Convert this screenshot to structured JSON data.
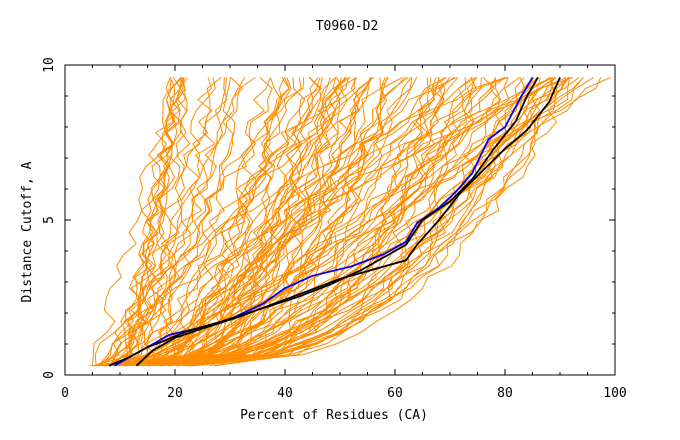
{
  "chart_data": {
    "type": "line",
    "title": "T0960-D2",
    "xlabel": "Percent of Residues (CA)",
    "ylabel": "Distance Cutoff, A",
    "xlim": [
      0,
      100
    ],
    "ylim": [
      0,
      10
    ],
    "x_ticks": [
      "0",
      "20",
      "40",
      "60",
      "80",
      "100"
    ],
    "y_ticks": [
      "0",
      "5",
      "10"
    ],
    "grid": false,
    "legend": "none",
    "colors": {
      "background_models": "#ff8c00",
      "highlight_blue": "#0000ff",
      "highlight_black": "#000000"
    },
    "series": [
      {
        "color": "#0000ff",
        "points": [
          [
            9,
            0.3
          ],
          [
            12,
            0.6
          ],
          [
            15,
            0.9
          ],
          [
            19,
            1.3
          ],
          [
            24,
            1.5
          ],
          [
            30,
            1.8
          ],
          [
            36,
            2.3
          ],
          [
            40,
            2.8
          ],
          [
            45,
            3.2
          ],
          [
            52,
            3.5
          ],
          [
            58,
            3.9
          ],
          [
            62,
            4.3
          ],
          [
            64,
            4.9
          ],
          [
            68,
            5.4
          ],
          [
            71,
            5.9
          ],
          [
            74,
            6.5
          ],
          [
            77,
            7.6
          ],
          [
            80,
            8.0
          ],
          [
            83,
            9.0
          ],
          [
            85,
            9.6
          ]
        ]
      },
      {
        "color": "#000000",
        "points": [
          [
            8,
            0.3
          ],
          [
            12,
            0.6
          ],
          [
            15,
            0.9
          ],
          [
            18,
            1.1
          ],
          [
            22,
            1.4
          ],
          [
            28,
            1.7
          ],
          [
            35,
            2.1
          ],
          [
            42,
            2.5
          ],
          [
            48,
            2.9
          ],
          [
            54,
            3.4
          ],
          [
            58,
            3.8
          ],
          [
            62,
            4.2
          ],
          [
            65,
            5.0
          ],
          [
            70,
            5.6
          ],
          [
            74,
            6.3
          ],
          [
            78,
            7.3
          ],
          [
            82,
            8.2
          ],
          [
            84,
            9.0
          ],
          [
            86,
            9.6
          ]
        ]
      },
      {
        "color": "#000000",
        "points": [
          [
            13,
            0.3
          ],
          [
            16,
            0.8
          ],
          [
            20,
            1.2
          ],
          [
            25,
            1.5
          ],
          [
            32,
            1.9
          ],
          [
            38,
            2.3
          ],
          [
            44,
            2.7
          ],
          [
            50,
            3.1
          ],
          [
            56,
            3.4
          ],
          [
            62,
            3.7
          ],
          [
            64,
            4.2
          ],
          [
            68,
            5.0
          ],
          [
            72,
            5.9
          ],
          [
            76,
            6.6
          ],
          [
            80,
            7.3
          ],
          [
            84,
            7.9
          ],
          [
            88,
            8.8
          ],
          [
            90,
            9.6
          ]
        ]
      }
    ]
  }
}
